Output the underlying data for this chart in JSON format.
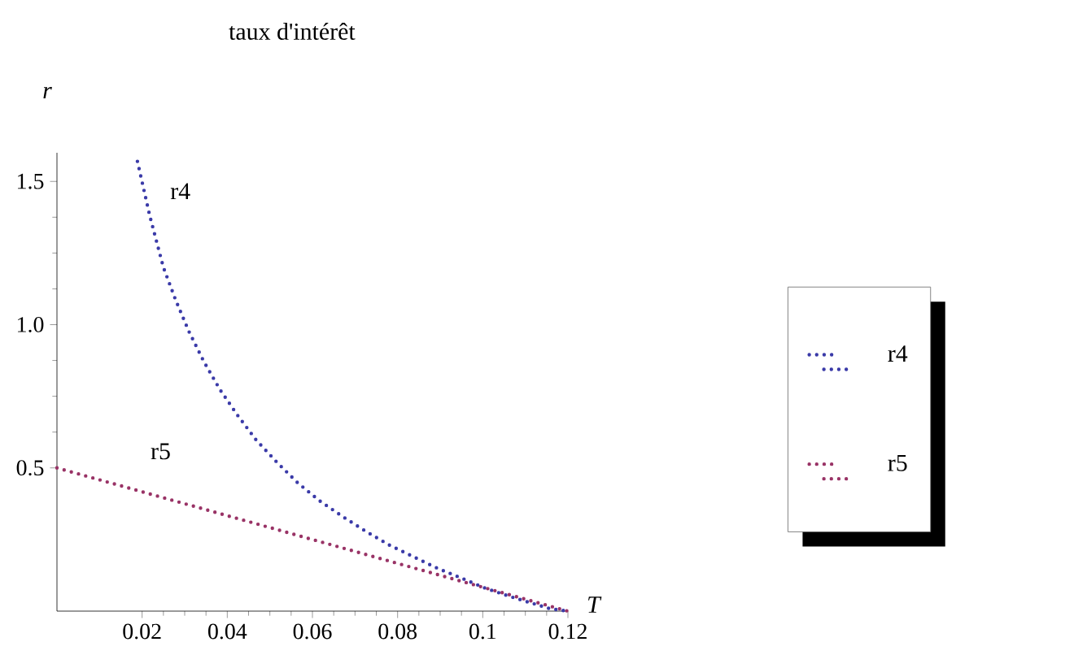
{
  "chart_data": {
    "type": "line",
    "title": "taux d'intérêt",
    "xlabel": "T",
    "ylabel": "r",
    "xlim": [
      0,
      0.12
    ],
    "ylim": [
      0,
      1.6
    ],
    "xticks": [
      0.02,
      0.04,
      0.06,
      0.08,
      0.1,
      0.12
    ],
    "yticks": [
      0.5,
      {
        "value": 1,
        "label": "1.0"
      },
      1.5
    ],
    "series": [
      {
        "name": "r4",
        "color": "#3a3aa8",
        "x": [
          0.0189,
          0.0218,
          0.025,
          0.0279,
          0.031,
          0.0345,
          0.0383,
          0.0424,
          0.0468,
          0.0517,
          0.0566,
          0.0617,
          0.0671,
          0.0726,
          0.078,
          0.0837,
          0.0893,
          0.0949,
          0.1006,
          0.1064,
          0.1159,
          0.12
        ],
        "values": [
          1.57,
          1.38,
          1.2,
          1.085,
          0.976,
          0.871,
          0.773,
          0.684,
          0.597,
          0.519,
          0.447,
          0.385,
          0.33,
          0.278,
          0.231,
          0.19,
          0.15,
          0.116,
          0.08,
          0.051,
          0.008,
          0
        ]
      },
      {
        "name": "r5",
        "color": "#993366",
        "x": [
          0,
          0.12
        ],
        "values": [
          0.5,
          0
        ]
      }
    ],
    "legend": "right",
    "grid": false,
    "marker": "none",
    "line_style": "dotted"
  }
}
